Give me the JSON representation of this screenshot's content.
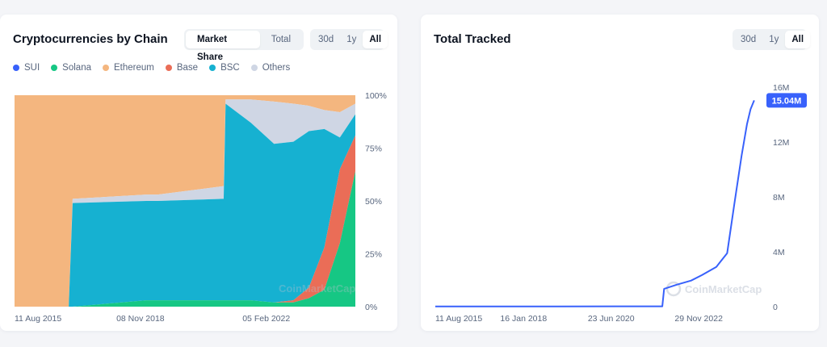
{
  "left_card": {
    "title": "Cryptocurrencies by Chain",
    "view_toggle": [
      {
        "label": "Market Share",
        "active": true
      },
      {
        "label": "Total",
        "active": false
      }
    ],
    "range_toggle": [
      {
        "label": "30d",
        "active": false
      },
      {
        "label": "1y",
        "active": false
      },
      {
        "label": "All",
        "active": true
      }
    ],
    "watermark": "CoinMarketCap"
  },
  "right_card": {
    "title": "Total Tracked",
    "range_toggle": [
      {
        "label": "30d",
        "active": false
      },
      {
        "label": "1y",
        "active": false
      },
      {
        "label": "All",
        "active": true
      }
    ],
    "current_value": "15.04M",
    "watermark": "CoinMarketCap"
  },
  "chart_data": [
    {
      "type": "area",
      "title": "Cryptocurrencies by Chain",
      "stacked": true,
      "normalized": true,
      "x_tick_labels": [
        "11 Aug 2015",
        "08 Nov 2018",
        "05 Feb 2022"
      ],
      "y_tick_labels": [
        "100%",
        "75%",
        "50%",
        "25%",
        "0%"
      ],
      "ylim": [
        0,
        100
      ],
      "legend_position": "top-left",
      "x": [
        2015.6,
        2017.0,
        2017.1,
        2019.0,
        2019.3,
        2021.0,
        2021.05,
        2021.7,
        2022.3,
        2022.8,
        2023.2,
        2023.6,
        2024.0,
        2024.4
      ],
      "series": [
        {
          "name": "SUI",
          "color": "#3861fb",
          "values": [
            0,
            0,
            0,
            0,
            0,
            0,
            0,
            0,
            0,
            0,
            0,
            0,
            0,
            0
          ]
        },
        {
          "name": "Solana",
          "color": "#16c784",
          "values": [
            0,
            0,
            0,
            3,
            3,
            3,
            3,
            3,
            2,
            2,
            4,
            8,
            30,
            64
          ]
        },
        {
          "name": "Ethereum",
          "color": "#f4b67f",
          "values": [
            100,
            100,
            49,
            47,
            47,
            43,
            2,
            2,
            3,
            4,
            5,
            7,
            8,
            4
          ]
        },
        {
          "name": "Base",
          "color": "#ea6d57",
          "values": [
            0,
            0,
            0,
            0,
            0,
            0,
            0,
            0,
            0,
            1,
            5,
            20,
            35,
            17
          ]
        },
        {
          "name": "BSC",
          "color": "#16b1d1",
          "values": [
            0,
            0,
            49,
            47,
            47,
            48,
            93,
            84,
            75,
            75,
            74,
            56,
            15,
            10
          ]
        },
        {
          "name": "Others",
          "color": "#cfd6e4",
          "values": [
            0,
            0,
            2,
            3,
            3,
            6,
            2,
            11,
            20,
            18,
            12,
            9,
            12,
            5
          ]
        }
      ]
    },
    {
      "type": "line",
      "title": "Total Tracked",
      "color": "#3861fb",
      "x_tick_labels": [
        "11 Aug 2015",
        "16 Jan 2018",
        "23 Jun 2020",
        "29 Nov 2022"
      ],
      "y_tick_labels": [
        "16M",
        "12M",
        "8M",
        "4M",
        "0"
      ],
      "ylim": [
        0,
        16000000
      ],
      "x": [
        2015.6,
        2017.0,
        2019.0,
        2021.0,
        2021.9,
        2021.95,
        2022.3,
        2022.7,
        2023.0,
        2023.4,
        2023.7,
        2023.9,
        2024.1,
        2024.25,
        2024.35,
        2024.45
      ],
      "y": [
        15000,
        18000,
        18000,
        20000,
        20000,
        1300000,
        1600000,
        1900000,
        2300000,
        2900000,
        3900000,
        7500000,
        11000000,
        13300000,
        14400000,
        15040000
      ]
    }
  ]
}
